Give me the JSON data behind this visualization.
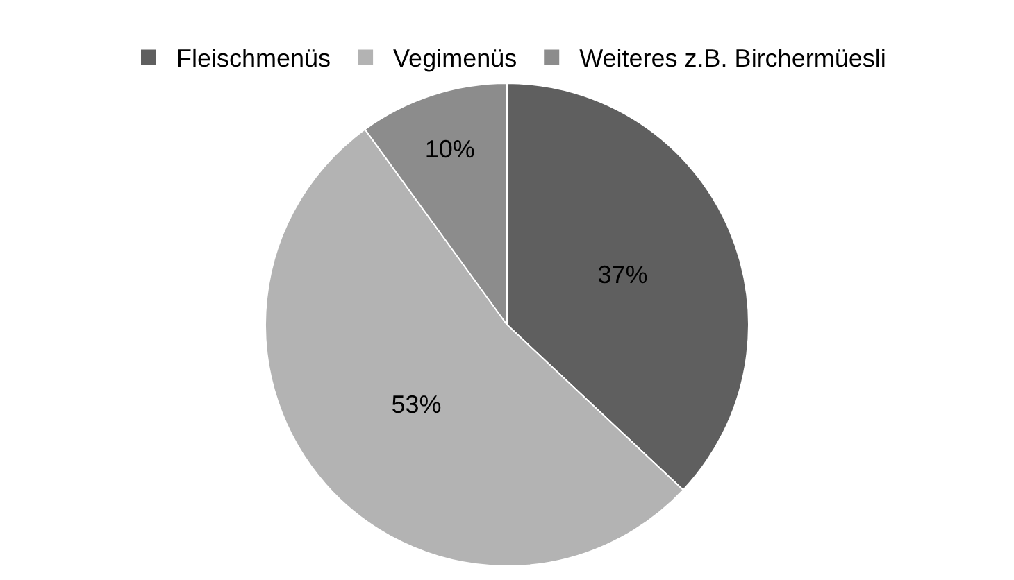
{
  "chart_data": {
    "type": "pie",
    "categories": [
      "Fleischmenüs",
      "Vegimenüs",
      "Weiteres z.B. Birchermüesli"
    ],
    "values": [
      37,
      53,
      10
    ],
    "colors": [
      "#5f5f5f",
      "#b3b3b3",
      "#8c8c8c"
    ],
    "value_labels": [
      "37%",
      "53%",
      "10%"
    ],
    "legend": "top"
  }
}
